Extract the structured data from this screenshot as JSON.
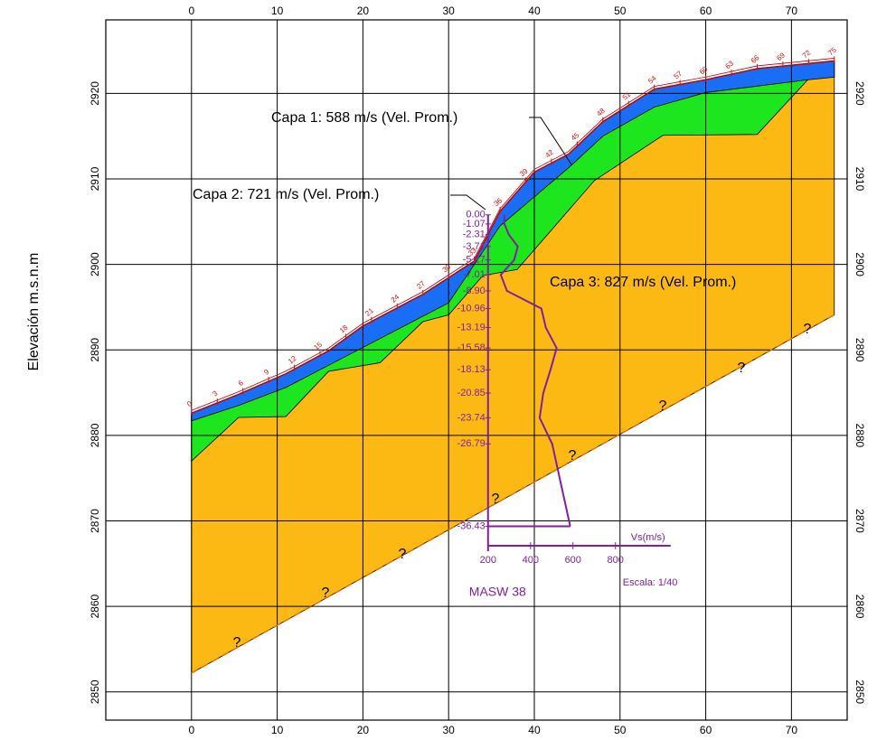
{
  "chart_data": {
    "type": "area",
    "y_label": "Elevación m.s.n.m",
    "xlim": [
      -10,
      76.5
    ],
    "ylim": [
      2846.7,
      2928.6
    ],
    "xticks": [
      0,
      10,
      20,
      30,
      40,
      50,
      60,
      70
    ],
    "yticks": [
      2850,
      2860,
      2870,
      2880,
      2890,
      2900,
      2910,
      2920
    ],
    "grid": true,
    "surface": {
      "color": "#c00000",
      "x": [
        0,
        5.5,
        11,
        16,
        20,
        27,
        33,
        36,
        40,
        44,
        48,
        54,
        60,
        66,
        75
      ],
      "values": [
        2882.6,
        2884.8,
        2887.2,
        2889.9,
        2892.8,
        2896.5,
        2900.4,
        2906.2,
        2910.8,
        2912.9,
        2916.7,
        2920.5,
        2921.6,
        2922.9,
        2923.8
      ]
    },
    "series": [
      {
        "name": "Capa 3: 827 m/s (Vel. Prom.)",
        "color": "#fdb913",
        "line_color": "#e07000",
        "x": [
          0,
          75
        ],
        "values": [
          2852.2,
          2894.1
        ]
      },
      {
        "name": "Capa 2: 721 m/s (Vel. Prom.)",
        "color": "#1ee61e",
        "x": [
          0,
          5.5,
          11,
          16,
          22,
          27,
          30,
          34,
          38,
          47,
          55,
          66,
          72,
          75
        ],
        "values": [
          2877,
          2882.1,
          2882.2,
          2887.5,
          2888.5,
          2893.3,
          2894.1,
          2898.7,
          2899.4,
          2909.8,
          2915.1,
          2915.2,
          2921.7,
          2922
        ]
      },
      {
        "name": "Capa 1: 588 m/s (Vel. Prom.)",
        "color": "#1a6ef5",
        "x": [
          0,
          5.5,
          11,
          16,
          30,
          36,
          44,
          48,
          54,
          60,
          72,
          75
        ],
        "values": [
          2881.7,
          2883.5,
          2885.6,
          2888.2,
          2895.5,
          2904.5,
          2911.3,
          2915,
          2918.4,
          2920.1,
          2921.6,
          2921.9
        ]
      }
    ],
    "stations": {
      "color": "#d01010",
      "values": [
        0,
        3,
        6,
        9,
        12,
        15,
        18,
        21,
        24,
        27,
        30,
        33,
        36,
        39,
        42,
        45,
        48,
        51,
        54,
        57,
        60,
        63,
        66,
        69,
        72,
        75
      ]
    },
    "unknown_mark": "?",
    "masw": {
      "title": "MASW 38",
      "scale_label": "Escala: 1/40",
      "x_label": "Vs(m/s)",
      "color": "#8020a0",
      "position": 34.6,
      "top_elevation": 2905.8,
      "axis_elevation": 2867.1,
      "xlim": [
        200,
        1060
      ],
      "xticks": [
        200,
        400,
        600,
        800
      ],
      "depths": [
        0,
        -1.07,
        -2.31,
        -3.71,
        -5.27,
        -7.01,
        -8.9,
        -10.96,
        -13.19,
        -15.58,
        -18.13,
        -20.85,
        -23.74,
        -26.79,
        -36.43
      ],
      "depth_labels": [
        "0.00",
        "-1.07",
        "-2.31",
        "-3.71",
        "-5.27",
        "-7.01",
        "-8.90",
        "-10.96",
        "-13.19",
        "-15.58",
        "-18.13",
        "-20.85",
        "-23.74",
        "-26.79",
        "-36.43"
      ],
      "velocities": [
        277,
        277,
        298,
        340,
        323,
        260,
        289,
        451,
        472,
        523,
        494,
        460,
        443,
        502,
        587
      ]
    }
  }
}
